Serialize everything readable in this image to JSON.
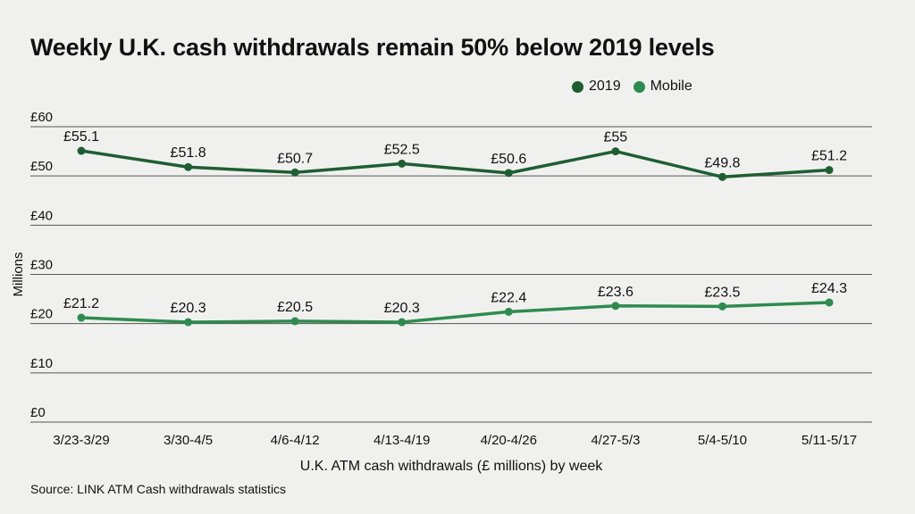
{
  "title": "Weekly U.K. cash withdrawals remain 50% below 2019 levels",
  "source": "Source: LINK ATM Cash withdrawals statistics",
  "chart_data": {
    "type": "line",
    "categories": [
      "3/23-3/29",
      "3/30-4/5",
      "4/6-4/12",
      "4/13-4/19",
      "4/20-4/26",
      "4/27-5/3",
      "5/4-5/10",
      "5/11-5/17"
    ],
    "series": [
      {
        "name": "2019",
        "color": "#1e5e32",
        "values": [
          55.1,
          51.8,
          50.7,
          52.5,
          50.6,
          55,
          49.8,
          51.2
        ],
        "labels": [
          "£55.1",
          "£51.8",
          "£50.7",
          "£52.5",
          "£50.6",
          "£55",
          "£49.8",
          "£51.2"
        ]
      },
      {
        "name": "Mobile",
        "color": "#2e8b4f",
        "values": [
          21.2,
          20.3,
          20.5,
          20.3,
          22.4,
          23.6,
          23.5,
          24.3
        ],
        "labels": [
          "£21.2",
          "£20.3",
          "£20.5",
          "£20.3",
          "£22.4",
          "£23.6",
          "£23.5",
          "£24.3"
        ]
      }
    ],
    "xlabel": "U.K. ATM cash withdrawals (£ millions) by week",
    "ylabel": "Millions",
    "ylim": [
      0,
      60
    ],
    "yticks": [
      0,
      10,
      20,
      30,
      40,
      50,
      60
    ],
    "ytick_labels": [
      "£0",
      "£10",
      "£20",
      "£30",
      "£40",
      "£50",
      "£60"
    ],
    "grid": true,
    "legend_position": "top-right"
  }
}
